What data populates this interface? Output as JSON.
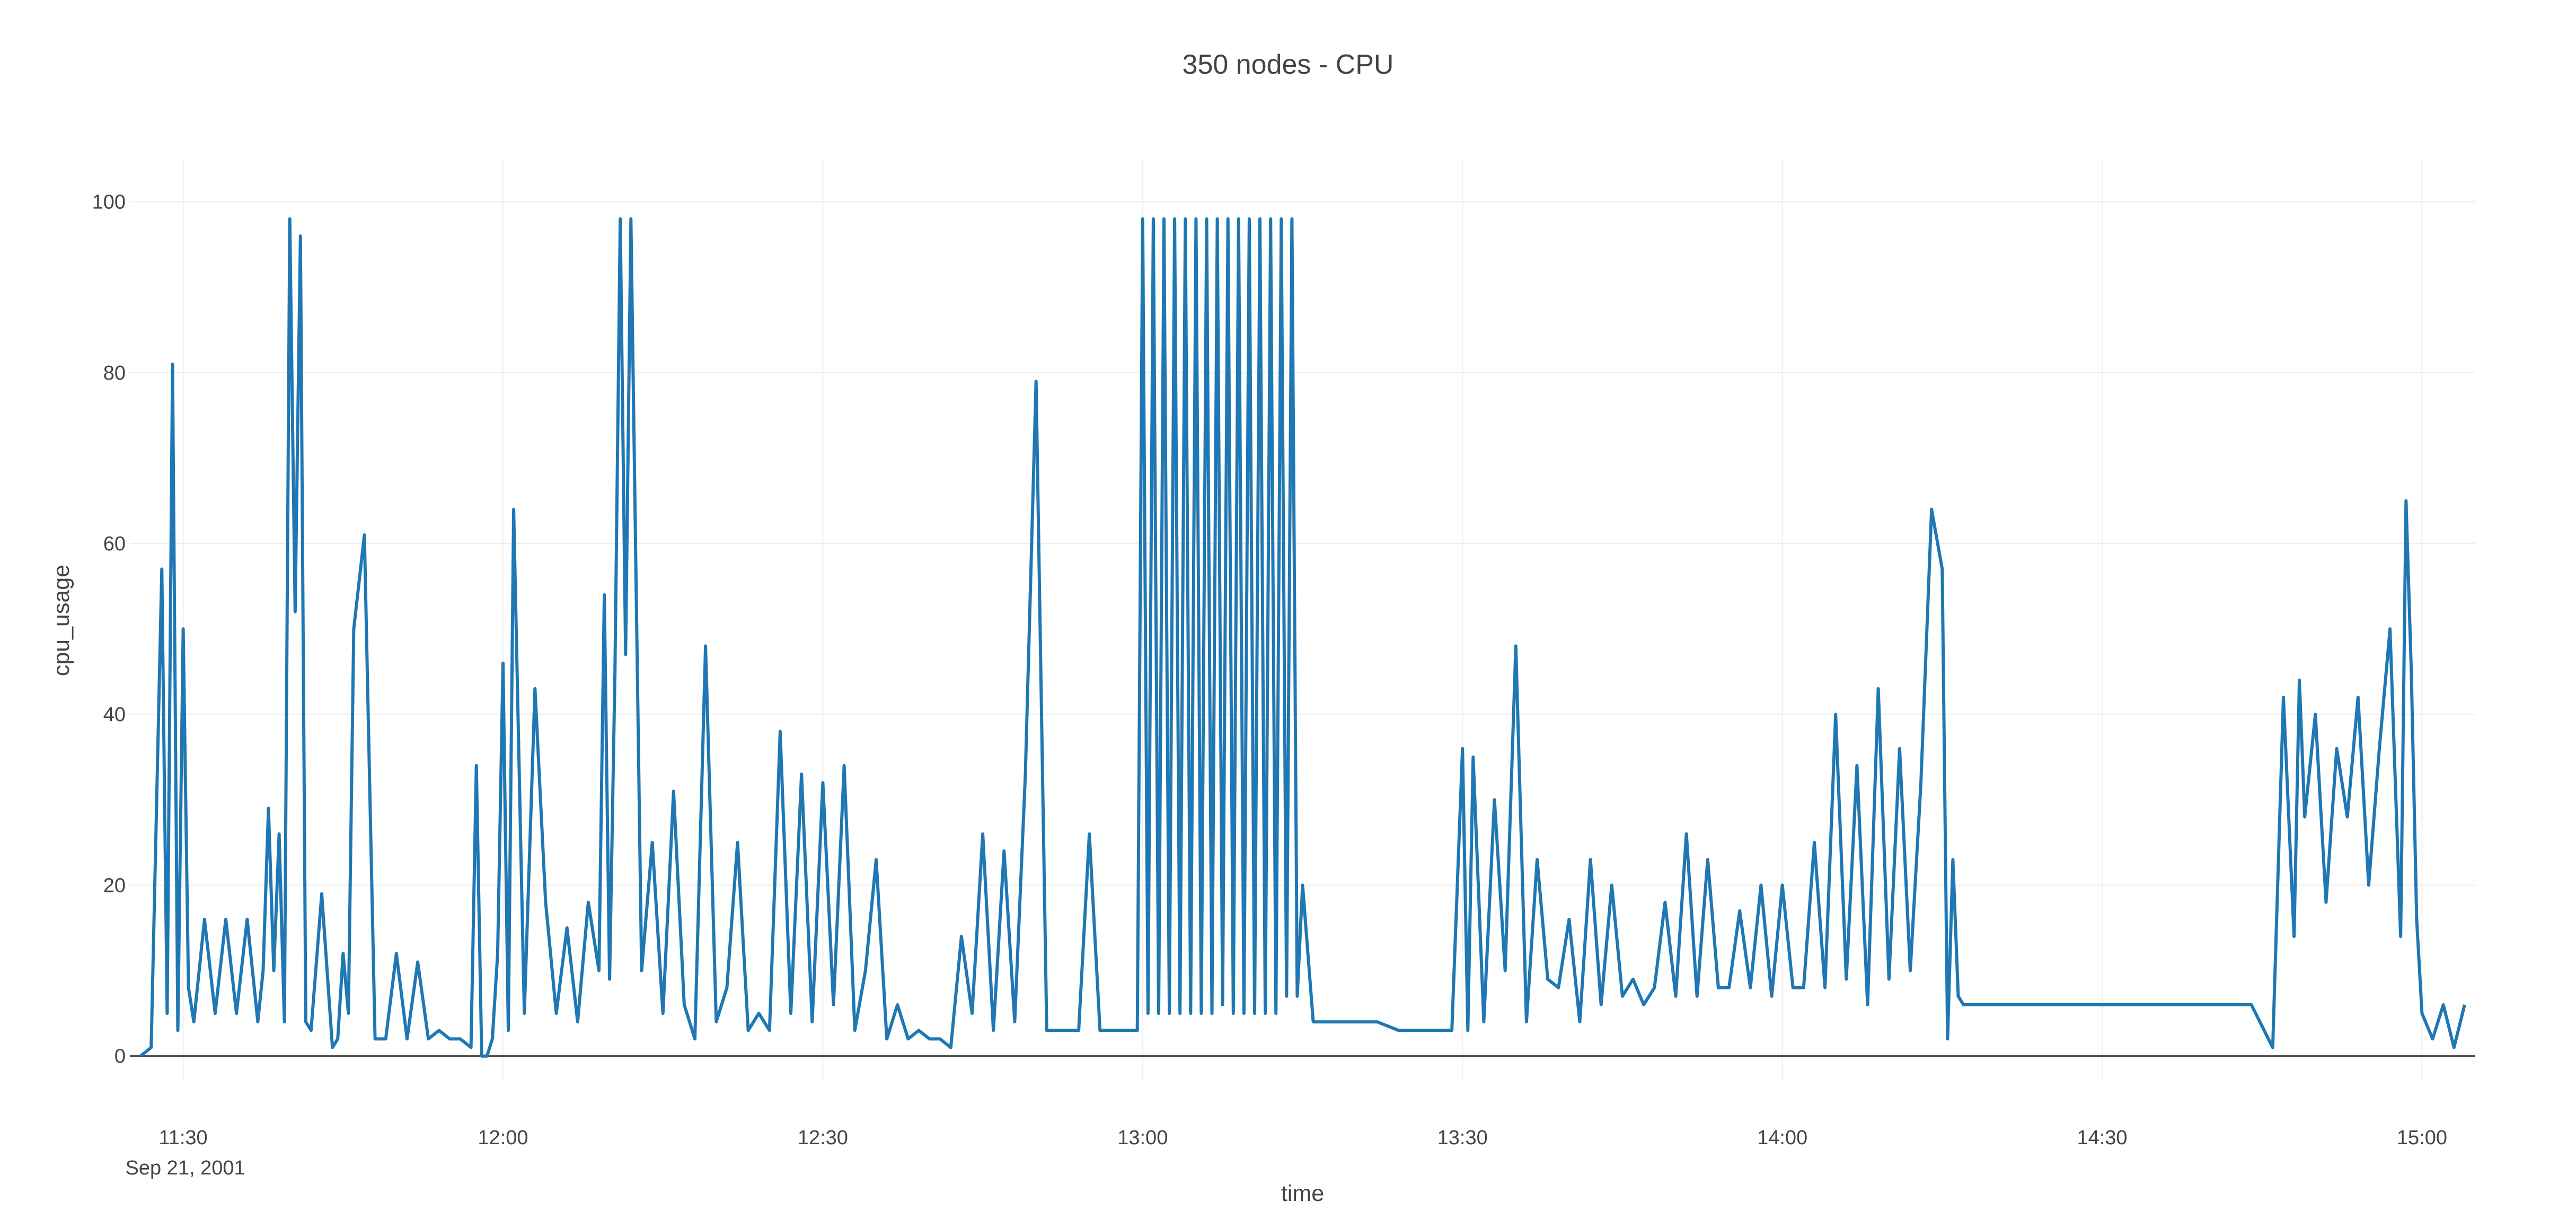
{
  "chart_data": {
    "type": "line",
    "title": "350 nodes - CPU",
    "xlabel": "time",
    "ylabel": "cpu_usage",
    "x_range": [
      "2001-09-21 11:25",
      "2001-09-21 15:05"
    ],
    "ylim": [
      -3,
      105
    ],
    "y_ticks": [
      0,
      20,
      40,
      60,
      80,
      100
    ],
    "x_ticks": [
      {
        "time": "2001-09-21 11:30",
        "label": "11:30",
        "sublabel": "Sep 21, 2001"
      },
      {
        "time": "2001-09-21 12:00",
        "label": "12:00",
        "sublabel": ""
      },
      {
        "time": "2001-09-21 12:30",
        "label": "12:30",
        "sublabel": ""
      },
      {
        "time": "2001-09-21 13:00",
        "label": "13:00",
        "sublabel": ""
      },
      {
        "time": "2001-09-21 13:30",
        "label": "13:30",
        "sublabel": ""
      },
      {
        "time": "2001-09-21 14:00",
        "label": "14:00",
        "sublabel": ""
      },
      {
        "time": "2001-09-21 14:30",
        "label": "14:30",
        "sublabel": ""
      },
      {
        "time": "2001-09-21 15:00",
        "label": "15:00",
        "sublabel": ""
      }
    ],
    "grid": true,
    "series": [
      {
        "color": "#1f77b4",
        "x": [
          "11:26",
          "11:27",
          "11:28",
          "11:28:30",
          "11:29",
          "11:29:30",
          "11:30",
          "11:30:30",
          "11:31",
          "11:32",
          "11:33",
          "11:34",
          "11:35",
          "11:36",
          "11:37",
          "11:37:30",
          "11:38",
          "11:38:30",
          "11:39",
          "11:39:30",
          "11:40",
          "11:40:30",
          "11:41",
          "11:41:30",
          "11:42",
          "11:43",
          "11:44",
          "11:44:30",
          "11:45",
          "11:45:30",
          "11:46",
          "11:47",
          "11:48",
          "11:49",
          "11:50",
          "11:51",
          "11:52",
          "11:53",
          "11:54",
          "11:55",
          "11:56",
          "11:57",
          "11:57:30",
          "11:58",
          "11:58:30",
          "11:59",
          "11:59:30",
          "12:00",
          "12:00:30",
          "12:01",
          "12:02",
          "12:03",
          "12:04",
          "12:05",
          "12:06",
          "12:07",
          "12:08",
          "12:09",
          "12:09:30",
          "12:10",
          "12:10:30",
          "12:11",
          "12:11:30",
          "12:12",
          "12:13",
          "12:14",
          "12:15",
          "12:16",
          "12:17",
          "12:18",
          "12:19",
          "12:20",
          "12:21",
          "12:22",
          "12:23",
          "12:24",
          "12:25",
          "12:26",
          "12:27",
          "12:28",
          "12:29",
          "12:30",
          "12:31",
          "12:32",
          "12:33",
          "12:34",
          "12:35",
          "12:36",
          "12:37",
          "12:38",
          "12:39",
          "12:40",
          "12:41",
          "12:42",
          "12:43",
          "12:44",
          "12:45",
          "12:46",
          "12:47",
          "12:48",
          "12:49",
          "12:50",
          "12:51",
          "12:52",
          "12:53",
          "12:54",
          "12:55",
          "12:56",
          "12:57",
          "12:58",
          "12:58:30",
          "12:59",
          "12:59:30",
          "13:00",
          "13:00:30",
          "13:01",
          "13:01:30",
          "13:02",
          "13:02:30",
          "13:03",
          "13:03:30",
          "13:04",
          "13:04:30",
          "13:05",
          "13:05:30",
          "13:06",
          "13:06:30",
          "13:07",
          "13:07:30",
          "13:08",
          "13:08:30",
          "13:09",
          "13:09:30",
          "13:10",
          "13:10:30",
          "13:11",
          "13:11:30",
          "13:12",
          "13:12:30",
          "13:13",
          "13:13:30",
          "13:14",
          "13:14:30",
          "13:15",
          "13:16",
          "13:18",
          "13:20",
          "13:22",
          "13:24",
          "13:26",
          "13:28",
          "13:29",
          "13:30",
          "13:30:30",
          "13:31",
          "13:32",
          "13:33",
          "13:34",
          "13:35",
          "13:36",
          "13:37",
          "13:38",
          "13:39",
          "13:40",
          "13:41",
          "13:42",
          "13:43",
          "13:44",
          "13:45",
          "13:46",
          "13:47",
          "13:48",
          "13:49",
          "13:50",
          "13:51",
          "13:52",
          "13:53",
          "13:54",
          "13:55",
          "13:56",
          "13:57",
          "13:58",
          "13:59",
          "14:00",
          "14:01",
          "14:02",
          "14:03",
          "14:04",
          "14:05",
          "14:06",
          "14:07",
          "14:08",
          "14:09",
          "14:10",
          "14:11",
          "14:12",
          "14:13",
          "14:14",
          "14:15",
          "14:15:30",
          "14:16",
          "14:16:30",
          "14:17",
          "14:18",
          "14:20",
          "14:22",
          "14:24",
          "14:26",
          "14:28",
          "14:30",
          "14:32",
          "14:34",
          "14:36",
          "14:38",
          "14:40",
          "14:42",
          "14:44",
          "14:46",
          "14:47",
          "14:48",
          "14:48:30",
          "14:49",
          "14:50",
          "14:51",
          "14:52",
          "14:53",
          "14:54",
          "14:55",
          "14:56",
          "14:57",
          "14:58",
          "14:58:30",
          "14:59",
          "14:59:30",
          "15:00",
          "15:01",
          "15:02",
          "15:03",
          "15:04"
        ],
        "y": [
          0,
          1,
          57,
          5,
          81,
          3,
          50,
          8,
          4,
          16,
          5,
          16,
          5,
          16,
          4,
          10,
          29,
          10,
          26,
          4,
          98,
          52,
          96,
          4,
          3,
          19,
          1,
          2,
          12,
          5,
          50,
          61,
          2,
          2,
          12,
          2,
          11,
          2,
          3,
          2,
          2,
          1,
          34,
          0,
          0,
          2,
          12,
          46,
          3,
          64,
          5,
          43,
          18,
          5,
          15,
          4,
          18,
          10,
          54,
          9,
          45,
          98,
          47,
          98,
          10,
          25,
          5,
          31,
          6,
          2,
          48,
          4,
          8,
          25,
          3,
          5,
          3,
          38,
          5,
          33,
          4,
          32,
          6,
          34,
          3,
          10,
          23,
          2,
          6,
          2,
          3,
          2,
          2,
          1,
          14,
          5,
          26,
          3,
          24,
          4,
          33,
          79,
          3,
          3,
          3,
          3,
          26,
          3,
          3,
          3,
          3,
          3,
          3,
          98,
          5,
          98,
          5,
          98,
          5,
          98,
          5,
          98,
          5,
          98,
          5,
          98,
          5,
          98,
          6,
          98,
          5,
          98,
          5,
          98,
          5,
          98,
          5,
          98,
          5,
          98,
          7,
          98,
          7,
          20,
          4,
          4,
          4,
          4,
          3,
          3,
          3,
          3,
          36,
          3,
          35,
          4,
          30,
          10,
          48,
          4,
          23,
          9,
          8,
          16,
          4,
          23,
          6,
          20,
          7,
          9,
          6,
          8,
          18,
          7,
          26,
          7,
          23,
          8,
          8,
          17,
          8,
          20,
          7,
          20,
          8,
          8,
          25,
          8,
          40,
          9,
          34,
          6,
          43,
          9,
          36,
          10,
          32,
          64,
          57,
          2,
          23,
          7,
          6,
          6,
          6,
          6,
          6,
          6,
          6,
          6,
          6,
          6,
          6,
          6,
          6,
          6,
          6,
          1,
          42,
          14,
          44,
          28,
          40,
          18,
          36,
          28,
          42,
          20,
          36,
          50,
          14,
          65,
          45,
          16,
          5,
          2,
          6,
          1,
          6
        ]
      }
    ]
  }
}
